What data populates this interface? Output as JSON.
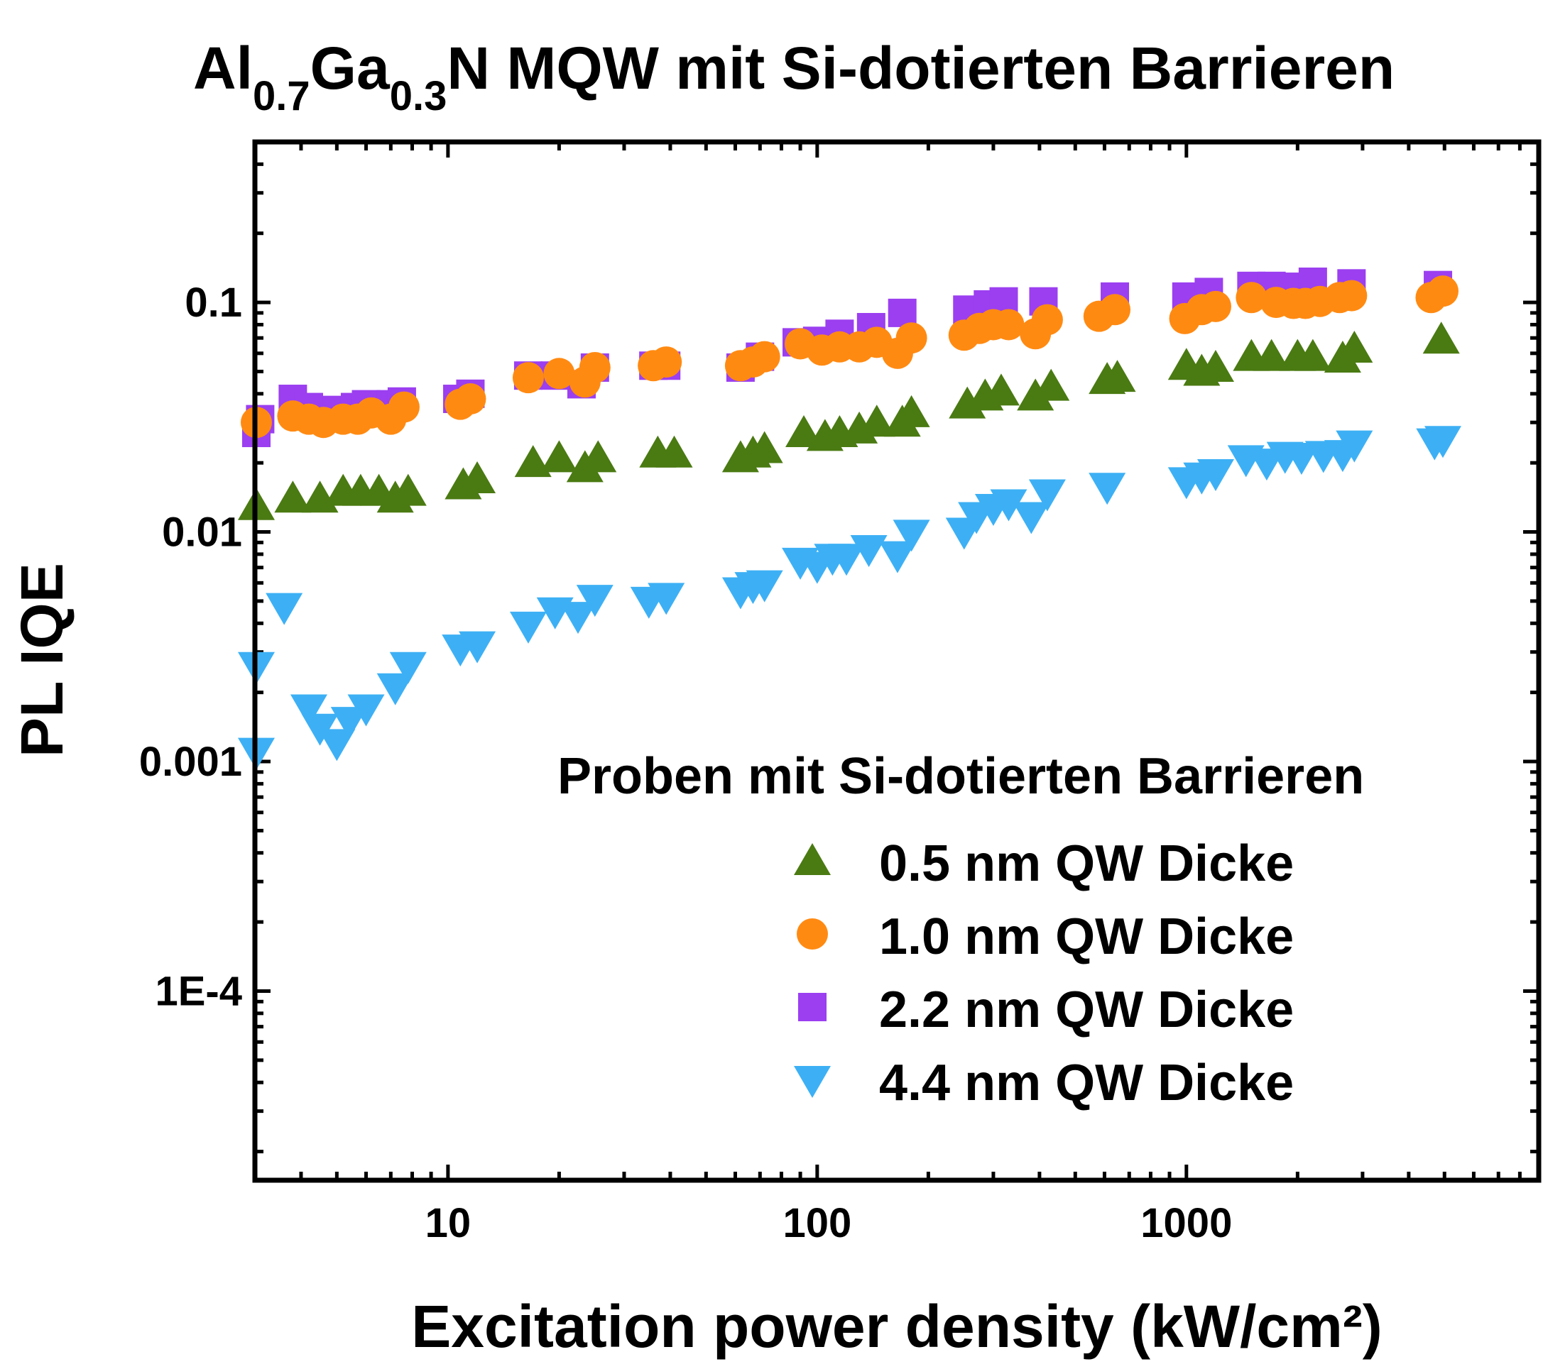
{
  "chart_data": {
    "type": "scatter",
    "title": {
      "base1": "Al",
      "sub1": "0.7",
      "base2": "Ga",
      "sub2": "0.3",
      "rest": "N MQW mit Si-dotierten Barrieren"
    },
    "xlabel": "Excitation power density (kW/cm²)",
    "ylabel": "PL IQE",
    "x_scale": "log",
    "y_scale": "log",
    "xlim": [
      3,
      9000
    ],
    "ylim": [
      1.5e-05,
      0.5
    ],
    "x_ticks": [
      {
        "value": 10,
        "label": "10"
      },
      {
        "value": 100,
        "label": "100"
      },
      {
        "value": 1000,
        "label": "1000"
      }
    ],
    "y_ticks": [
      {
        "value": 0.0001,
        "label": "1E-4"
      },
      {
        "value": 0.001,
        "label": "0.001"
      },
      {
        "value": 0.01,
        "label": "0.01"
      },
      {
        "value": 0.1,
        "label": "0.1"
      }
    ],
    "legend": {
      "title": "Proben mit Si-dotierten Barrieren",
      "position": "lower-right"
    },
    "series": [
      {
        "name": "2.2 nm QW Dicke",
        "marker": "square",
        "color": "#9b3ff0",
        "points": [
          [
            3.0,
            0.027
          ],
          [
            3.1,
            0.031
          ],
          [
            3.8,
            0.038
          ],
          [
            4.2,
            0.035
          ],
          [
            5.0,
            0.034
          ],
          [
            5.6,
            0.035
          ],
          [
            6.0,
            0.036
          ],
          [
            7.0,
            0.036
          ],
          [
            7.5,
            0.037
          ],
          [
            10.6,
            0.038
          ],
          [
            11.5,
            0.04
          ],
          [
            16.5,
            0.048
          ],
          [
            19.5,
            0.048
          ],
          [
            23.0,
            0.044
          ],
          [
            25.0,
            0.052
          ],
          [
            36.0,
            0.053
          ],
          [
            39.0,
            0.053
          ],
          [
            62.0,
            0.052
          ],
          [
            70.0,
            0.058
          ],
          [
            88.0,
            0.067
          ],
          [
            100.0,
            0.068
          ],
          [
            115.0,
            0.073
          ],
          [
            140.0,
            0.078
          ],
          [
            170.0,
            0.09
          ],
          [
            255.0,
            0.093
          ],
          [
            290.0,
            0.098
          ],
          [
            320.0,
            0.101
          ],
          [
            410.0,
            0.101
          ],
          [
            640.0,
            0.106
          ],
          [
            1000.0,
            0.106
          ],
          [
            1150.0,
            0.111
          ],
          [
            1500.0,
            0.118
          ],
          [
            1700.0,
            0.118
          ],
          [
            2000.0,
            0.117
          ],
          [
            2200.0,
            0.123
          ],
          [
            2800.0,
            0.121
          ],
          [
            4800.0,
            0.119
          ]
        ]
      },
      {
        "name": "1.0 nm QW Dicke",
        "marker": "circle",
        "color": "#ff8a12",
        "points": [
          [
            3.0,
            0.03
          ],
          [
            3.8,
            0.032
          ],
          [
            4.2,
            0.031
          ],
          [
            4.6,
            0.03
          ],
          [
            5.2,
            0.031
          ],
          [
            5.7,
            0.031
          ],
          [
            6.2,
            0.033
          ],
          [
            7.0,
            0.031
          ],
          [
            7.6,
            0.035
          ],
          [
            10.8,
            0.036
          ],
          [
            11.5,
            0.038
          ],
          [
            16.5,
            0.047
          ],
          [
            20.0,
            0.049
          ],
          [
            23.5,
            0.045
          ],
          [
            25.0,
            0.052
          ],
          [
            36.0,
            0.053
          ],
          [
            39.0,
            0.055
          ],
          [
            62.0,
            0.053
          ],
          [
            67.0,
            0.055
          ],
          [
            72.0,
            0.058
          ],
          [
            90.0,
            0.066
          ],
          [
            103.0,
            0.062
          ],
          [
            115.0,
            0.064
          ],
          [
            130.0,
            0.064
          ],
          [
            145.0,
            0.067
          ],
          [
            165.0,
            0.06
          ],
          [
            180.0,
            0.07
          ],
          [
            250.0,
            0.072
          ],
          [
            275.0,
            0.077
          ],
          [
            300.0,
            0.08
          ],
          [
            330.0,
            0.08
          ],
          [
            390.0,
            0.073
          ],
          [
            420.0,
            0.084
          ],
          [
            580.0,
            0.087
          ],
          [
            640.0,
            0.093
          ],
          [
            990.0,
            0.085
          ],
          [
            1100.0,
            0.093
          ],
          [
            1200.0,
            0.096
          ],
          [
            1500.0,
            0.105
          ],
          [
            1750.0,
            0.1
          ],
          [
            1950.0,
            0.099
          ],
          [
            2100.0,
            0.099
          ],
          [
            2300.0,
            0.101
          ],
          [
            2600.0,
            0.105
          ],
          [
            2800.0,
            0.107
          ],
          [
            4600.0,
            0.105
          ],
          [
            4950.0,
            0.112
          ]
        ]
      },
      {
        "name": "0.5 nm QW Dicke",
        "marker": "triangle-up",
        "color": "#4a7a12",
        "points": [
          [
            3.0,
            0.013
          ],
          [
            3.8,
            0.014
          ],
          [
            4.5,
            0.014
          ],
          [
            5.2,
            0.015
          ],
          [
            5.8,
            0.015
          ],
          [
            6.5,
            0.015
          ],
          [
            7.2,
            0.014
          ],
          [
            7.8,
            0.015
          ],
          [
            11.0,
            0.016
          ],
          [
            12.0,
            0.017
          ],
          [
            17.0,
            0.02
          ],
          [
            20.0,
            0.021
          ],
          [
            23.5,
            0.019
          ],
          [
            25.5,
            0.021
          ],
          [
            37.0,
            0.022
          ],
          [
            41.0,
            0.022
          ],
          [
            62.0,
            0.021
          ],
          [
            67.0,
            0.022
          ],
          [
            72.0,
            0.023
          ],
          [
            92.0,
            0.027
          ],
          [
            105.0,
            0.026
          ],
          [
            115.0,
            0.027
          ],
          [
            130.0,
            0.028
          ],
          [
            145.0,
            0.03
          ],
          [
            170.0,
            0.03
          ],
          [
            180.0,
            0.033
          ],
          [
            255.0,
            0.036
          ],
          [
            285.0,
            0.039
          ],
          [
            315.0,
            0.041
          ],
          [
            390.0,
            0.039
          ],
          [
            430.0,
            0.043
          ],
          [
            610.0,
            0.046
          ],
          [
            650.0,
            0.047
          ],
          [
            1000.0,
            0.053
          ],
          [
            1100.0,
            0.05
          ],
          [
            1200.0,
            0.052
          ],
          [
            1500.0,
            0.058
          ],
          [
            1700.0,
            0.058
          ],
          [
            2000.0,
            0.058
          ],
          [
            2200.0,
            0.058
          ],
          [
            2650.0,
            0.057
          ],
          [
            2850.0,
            0.063
          ],
          [
            4900.0,
            0.069
          ]
        ]
      },
      {
        "name": "4.4 nm QW Dicke",
        "marker": "triangle-down",
        "color": "#3db0f5",
        "points": [
          [
            3.0,
            0.0011
          ],
          [
            3.0,
            0.0026
          ],
          [
            3.6,
            0.0047
          ],
          [
            4.2,
            0.0017
          ],
          [
            4.5,
            0.0014
          ],
          [
            5.0,
            0.0012
          ],
          [
            5.4,
            0.0015
          ],
          [
            6.0,
            0.0017
          ],
          [
            7.2,
            0.0021
          ],
          [
            7.8,
            0.0026
          ],
          [
            10.8,
            0.0031
          ],
          [
            12.0,
            0.0032
          ],
          [
            16.5,
            0.0039
          ],
          [
            19.5,
            0.0045
          ],
          [
            22.5,
            0.0043
          ],
          [
            25.0,
            0.0051
          ],
          [
            35.0,
            0.005
          ],
          [
            39.0,
            0.0052
          ],
          [
            62.0,
            0.0055
          ],
          [
            67.0,
            0.0058
          ],
          [
            72.0,
            0.0059
          ],
          [
            90.0,
            0.0074
          ],
          [
            100.0,
            0.0071
          ],
          [
            110.0,
            0.0077
          ],
          [
            120.0,
            0.0077
          ],
          [
            138.0,
            0.0084
          ],
          [
            165.0,
            0.0079
          ],
          [
            180.0,
            0.0098
          ],
          [
            250.0,
            0.01
          ],
          [
            270.0,
            0.0117
          ],
          [
            300.0,
            0.0127
          ],
          [
            330.0,
            0.0133
          ],
          [
            380.0,
            0.0117
          ],
          [
            420.0,
            0.0147
          ],
          [
            610.0,
            0.0157
          ],
          [
            1000.0,
            0.0166
          ],
          [
            1100.0,
            0.0174
          ],
          [
            1200.0,
            0.018
          ],
          [
            1450.0,
            0.0207
          ],
          [
            1650.0,
            0.02
          ],
          [
            1850.0,
            0.0214
          ],
          [
            2050.0,
            0.0212
          ],
          [
            2350.0,
            0.0216
          ],
          [
            2650.0,
            0.0218
          ],
          [
            2850.0,
            0.024
          ],
          [
            4700.0,
            0.0245
          ],
          [
            4950.0,
            0.0251
          ]
        ]
      }
    ]
  }
}
